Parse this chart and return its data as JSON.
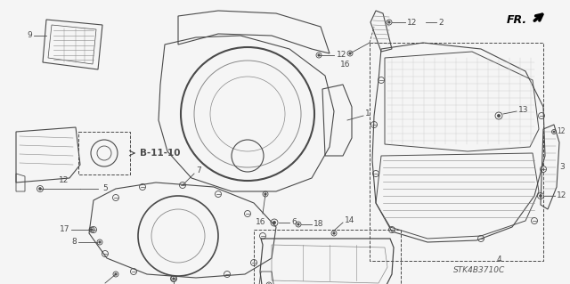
{
  "bg_color": "#f5f5f5",
  "diagram_code": "STK4B3710C",
  "line_color": "#4a4a4a",
  "light_line": "#888888",
  "label_fs": 6.5,
  "figsize": [
    6.4,
    3.19
  ],
  "dpi": 100
}
